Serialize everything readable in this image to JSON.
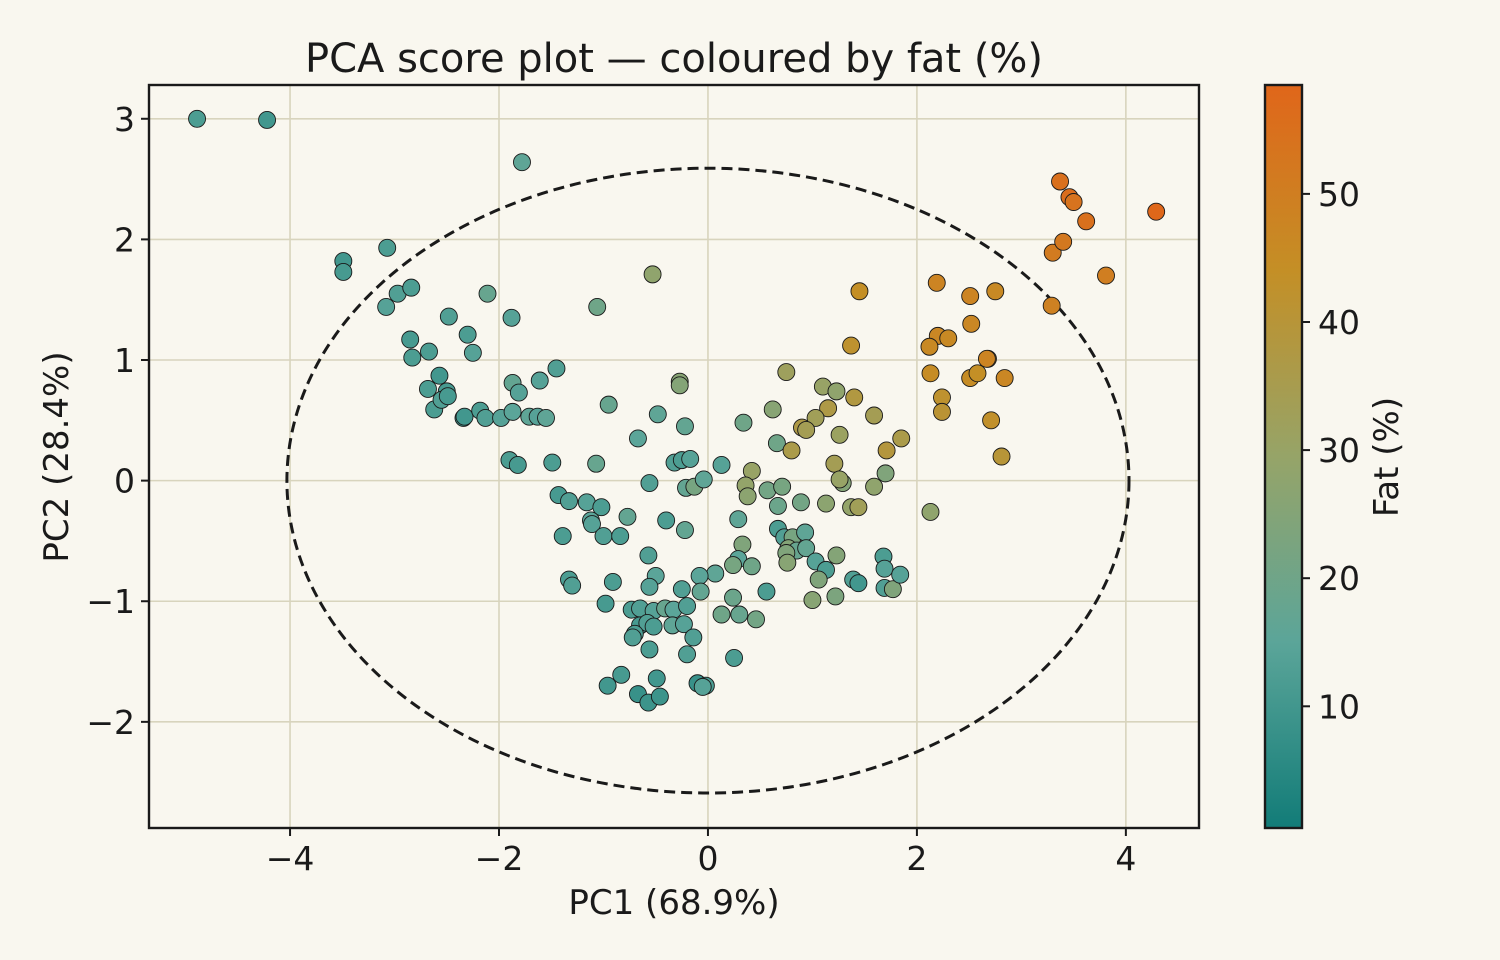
{
  "chart_data": {
    "type": "scatter",
    "title": "PCA score plot — coloured by fat (%)",
    "xlabel": "PC1  (68.9%)",
    "ylabel": "PC2  (28.4%)",
    "xlim": [
      -5.35,
      4.7
    ],
    "ylim": [
      -2.88,
      3.28
    ],
    "xticks": [
      -4,
      -2,
      0,
      2,
      4
    ],
    "yticks": [
      -2,
      -1,
      0,
      1,
      2,
      3
    ],
    "grid": true,
    "confidence_ellipse": {
      "center": [
        0,
        0
      ],
      "semi_axis_x": 4.03,
      "semi_axis_y": 2.59,
      "style": "dashed"
    },
    "colorbar": {
      "label": "Fat (%)",
      "range": [
        0.5,
        58.5
      ],
      "ticks": [
        10,
        20,
        30,
        40,
        50
      ],
      "colors": [
        "#127c78",
        "#5ba599",
        "#96a468",
        "#c48f26",
        "#e0661a"
      ]
    },
    "points": [
      {
        "x": -4.89,
        "y": 3.0,
        "fat": 12
      },
      {
        "x": -4.22,
        "y": 2.99,
        "fat": 10
      },
      {
        "x": -1.78,
        "y": 2.64,
        "fat": 16
      },
      {
        "x": -3.49,
        "y": 1.82,
        "fat": 10
      },
      {
        "x": -3.49,
        "y": 1.73,
        "fat": 11
      },
      {
        "x": -3.07,
        "y": 1.93,
        "fat": 12
      },
      {
        "x": -2.97,
        "y": 1.55,
        "fat": 13
      },
      {
        "x": -2.84,
        "y": 1.6,
        "fat": 12
      },
      {
        "x": -3.08,
        "y": 1.44,
        "fat": 14
      },
      {
        "x": -2.85,
        "y": 1.17,
        "fat": 11
      },
      {
        "x": -2.83,
        "y": 1.02,
        "fat": 12
      },
      {
        "x": -2.67,
        "y": 1.07,
        "fat": 12
      },
      {
        "x": -2.48,
        "y": 1.36,
        "fat": 13
      },
      {
        "x": -2.3,
        "y": 1.21,
        "fat": 12
      },
      {
        "x": -2.25,
        "y": 1.06,
        "fat": 14
      },
      {
        "x": -2.11,
        "y": 1.55,
        "fat": 18
      },
      {
        "x": -1.88,
        "y": 1.35,
        "fat": 14
      },
      {
        "x": -1.06,
        "y": 1.44,
        "fat": 20
      },
      {
        "x": -2.57,
        "y": 0.87,
        "fat": 10
      },
      {
        "x": -2.68,
        "y": 0.76,
        "fat": 12
      },
      {
        "x": -2.5,
        "y": 0.74,
        "fat": 11
      },
      {
        "x": -2.62,
        "y": 0.59,
        "fat": 12
      },
      {
        "x": -2.55,
        "y": 0.67,
        "fat": 13
      },
      {
        "x": -2.49,
        "y": 0.7,
        "fat": 11
      },
      {
        "x": -2.34,
        "y": 0.52,
        "fat": 9
      },
      {
        "x": -2.33,
        "y": 0.53,
        "fat": 10
      },
      {
        "x": -2.18,
        "y": 0.58,
        "fat": 12
      },
      {
        "x": -2.13,
        "y": 0.52,
        "fat": 13
      },
      {
        "x": -1.98,
        "y": 0.52,
        "fat": 14
      },
      {
        "x": -1.87,
        "y": 0.81,
        "fat": 17
      },
      {
        "x": -1.81,
        "y": 0.73,
        "fat": 14
      },
      {
        "x": -1.87,
        "y": 0.57,
        "fat": 15
      },
      {
        "x": -1.71,
        "y": 0.53,
        "fat": 16
      },
      {
        "x": -1.63,
        "y": 0.53,
        "fat": 14
      },
      {
        "x": -1.55,
        "y": 0.52,
        "fat": 16
      },
      {
        "x": -1.61,
        "y": 0.83,
        "fat": 14
      },
      {
        "x": -1.45,
        "y": 0.93,
        "fat": 13
      },
      {
        "x": -1.9,
        "y": 0.17,
        "fat": 12
      },
      {
        "x": -1.82,
        "y": 0.13,
        "fat": 11
      },
      {
        "x": -1.49,
        "y": 0.15,
        "fat": 12
      },
      {
        "x": -1.07,
        "y": 0.14,
        "fat": 18
      },
      {
        "x": -0.95,
        "y": 0.63,
        "fat": 18
      },
      {
        "x": -0.53,
        "y": 1.71,
        "fat": 28
      },
      {
        "x": -0.48,
        "y": 0.55,
        "fat": 16
      },
      {
        "x": -0.67,
        "y": 0.35,
        "fat": 15
      },
      {
        "x": -0.27,
        "y": 0.82,
        "fat": 26
      },
      {
        "x": -0.27,
        "y": 0.79,
        "fat": 25
      },
      {
        "x": -0.22,
        "y": 0.45,
        "fat": 17
      },
      {
        "x": -1.43,
        "y": -0.12,
        "fat": 11
      },
      {
        "x": -1.33,
        "y": -0.17,
        "fat": 13
      },
      {
        "x": -1.16,
        "y": -0.18,
        "fat": 14
      },
      {
        "x": -1.02,
        "y": -0.22,
        "fat": 12
      },
      {
        "x": -1.12,
        "y": -0.33,
        "fat": 15
      },
      {
        "x": -1.11,
        "y": -0.36,
        "fat": 14
      },
      {
        "x": -1.39,
        "y": -0.46,
        "fat": 12
      },
      {
        "x": -1.0,
        "y": -0.46,
        "fat": 13
      },
      {
        "x": -0.84,
        "y": -0.46,
        "fat": 12
      },
      {
        "x": -0.77,
        "y": -0.3,
        "fat": 17
      },
      {
        "x": -0.56,
        "y": -0.02,
        "fat": 13
      },
      {
        "x": -0.4,
        "y": -0.33,
        "fat": 12
      },
      {
        "x": -0.32,
        "y": 0.15,
        "fat": 13
      },
      {
        "x": -0.25,
        "y": 0.17,
        "fat": 12
      },
      {
        "x": -0.17,
        "y": 0.18,
        "fat": 14
      },
      {
        "x": -0.21,
        "y": -0.06,
        "fat": 17
      },
      {
        "x": -0.13,
        "y": -0.05,
        "fat": 22
      },
      {
        "x": -0.04,
        "y": 0.01,
        "fat": 16
      },
      {
        "x": 0.13,
        "y": 0.13,
        "fat": 14
      },
      {
        "x": -0.22,
        "y": -0.41,
        "fat": 17
      },
      {
        "x": 0.29,
        "y": -0.32,
        "fat": 16
      },
      {
        "x": 0.42,
        "y": 0.08,
        "fat": 30
      },
      {
        "x": 0.36,
        "y": -0.04,
        "fat": 29
      },
      {
        "x": 0.38,
        "y": -0.13,
        "fat": 27
      },
      {
        "x": 0.34,
        "y": 0.48,
        "fat": 20
      },
      {
        "x": 0.57,
        "y": -0.08,
        "fat": 21
      },
      {
        "x": 0.66,
        "y": 0.31,
        "fat": 20
      },
      {
        "x": 0.75,
        "y": 0.9,
        "fat": 32
      },
      {
        "x": 0.62,
        "y": 0.59,
        "fat": 26
      },
      {
        "x": 0.9,
        "y": 0.44,
        "fat": 37
      },
      {
        "x": 0.8,
        "y": 0.25,
        "fat": 36
      },
      {
        "x": 1.1,
        "y": 0.78,
        "fat": 30
      },
      {
        "x": 1.23,
        "y": 0.74,
        "fat": 28
      },
      {
        "x": 1.15,
        "y": 0.6,
        "fat": 37
      },
      {
        "x": 1.03,
        "y": 0.52,
        "fat": 33
      },
      {
        "x": 0.94,
        "y": 0.42,
        "fat": 34
      },
      {
        "x": 1.26,
        "y": 0.38,
        "fat": 31
      },
      {
        "x": 1.4,
        "y": 0.69,
        "fat": 38
      },
      {
        "x": 1.59,
        "y": 0.54,
        "fat": 34
      },
      {
        "x": 1.37,
        "y": 1.12,
        "fat": 42
      },
      {
        "x": 1.45,
        "y": 1.57,
        "fat": 44
      },
      {
        "x": 1.71,
        "y": 0.25,
        "fat": 39
      },
      {
        "x": 1.85,
        "y": 0.35,
        "fat": 36
      },
      {
        "x": 1.7,
        "y": 0.06,
        "fat": 24
      },
      {
        "x": 1.59,
        "y": -0.05,
        "fat": 28
      },
      {
        "x": 1.21,
        "y": 0.14,
        "fat": 34
      },
      {
        "x": 1.29,
        "y": -0.02,
        "fat": 25
      },
      {
        "x": 1.26,
        "y": 0.01,
        "fat": 30
      },
      {
        "x": 1.13,
        "y": -0.19,
        "fat": 27
      },
      {
        "x": 1.37,
        "y": -0.22,
        "fat": 29
      },
      {
        "x": 1.44,
        "y": -0.22,
        "fat": 33
      },
      {
        "x": 0.89,
        "y": -0.18,
        "fat": 21
      },
      {
        "x": 0.71,
        "y": -0.05,
        "fat": 22
      },
      {
        "x": 0.67,
        "y": -0.21,
        "fat": 19
      },
      {
        "x": 0.33,
        "y": -0.53,
        "fat": 24
      },
      {
        "x": 0.67,
        "y": -0.4,
        "fat": 12
      },
      {
        "x": 0.73,
        "y": -0.47,
        "fat": 13
      },
      {
        "x": 0.81,
        "y": -0.47,
        "fat": 22
      },
      {
        "x": 0.93,
        "y": -0.43,
        "fat": 16
      },
      {
        "x": 0.77,
        "y": -0.56,
        "fat": 25
      },
      {
        "x": 0.85,
        "y": -0.58,
        "fat": 18
      },
      {
        "x": 0.75,
        "y": -0.6,
        "fat": 24
      },
      {
        "x": 0.76,
        "y": -0.68,
        "fat": 26
      },
      {
        "x": 0.94,
        "y": -0.56,
        "fat": 17
      },
      {
        "x": 1.03,
        "y": -0.67,
        "fat": 14
      },
      {
        "x": 1.13,
        "y": -0.74,
        "fat": 12
      },
      {
        "x": 1.06,
        "y": -0.82,
        "fat": 24
      },
      {
        "x": 1.23,
        "y": -0.62,
        "fat": 25
      },
      {
        "x": 1.39,
        "y": -0.82,
        "fat": 13
      },
      {
        "x": 1.44,
        "y": -0.85,
        "fat": 10
      },
      {
        "x": 1.22,
        "y": -0.96,
        "fat": 23
      },
      {
        "x": 1.0,
        "y": -0.99,
        "fat": 26
      },
      {
        "x": 0.56,
        "y": -0.92,
        "fat": 12
      },
      {
        "x": 0.29,
        "y": -0.65,
        "fat": 15
      },
      {
        "x": 0.42,
        "y": -0.71,
        "fat": 20
      },
      {
        "x": 0.24,
        "y": -0.7,
        "fat": 22
      },
      {
        "x": 0.07,
        "y": -0.77,
        "fat": 16
      },
      {
        "x": -0.08,
        "y": -0.79,
        "fat": 15
      },
      {
        "x": -0.25,
        "y": -0.9,
        "fat": 13
      },
      {
        "x": -0.07,
        "y": -0.92,
        "fat": 17
      },
      {
        "x": 0.24,
        "y": -0.97,
        "fat": 19
      },
      {
        "x": 0.3,
        "y": -1.11,
        "fat": 18
      },
      {
        "x": 0.13,
        "y": -1.11,
        "fat": 20
      },
      {
        "x": 0.46,
        "y": -1.15,
        "fat": 21
      },
      {
        "x": -0.57,
        "y": -0.62,
        "fat": 13
      },
      {
        "x": -0.5,
        "y": -0.79,
        "fat": 15
      },
      {
        "x": -0.56,
        "y": -0.88,
        "fat": 14
      },
      {
        "x": -0.91,
        "y": -0.84,
        "fat": 12
      },
      {
        "x": -0.98,
        "y": -1.02,
        "fat": 11
      },
      {
        "x": -1.33,
        "y": -0.82,
        "fat": 12
      },
      {
        "x": -1.3,
        "y": -0.87,
        "fat": 13
      },
      {
        "x": -0.73,
        "y": -1.07,
        "fat": 12
      },
      {
        "x": -0.65,
        "y": -1.06,
        "fat": 13
      },
      {
        "x": -0.52,
        "y": -1.08,
        "fat": 14
      },
      {
        "x": -0.41,
        "y": -1.06,
        "fat": 18
      },
      {
        "x": -0.33,
        "y": -1.07,
        "fat": 15
      },
      {
        "x": -0.2,
        "y": -1.04,
        "fat": 13
      },
      {
        "x": -0.34,
        "y": -1.2,
        "fat": 16
      },
      {
        "x": -0.23,
        "y": -1.19,
        "fat": 14
      },
      {
        "x": -0.65,
        "y": -1.2,
        "fat": 11
      },
      {
        "x": -0.58,
        "y": -1.18,
        "fat": 13
      },
      {
        "x": -0.7,
        "y": -1.27,
        "fat": 12
      },
      {
        "x": -0.72,
        "y": -1.3,
        "fat": 13
      },
      {
        "x": -0.52,
        "y": -1.21,
        "fat": 12
      },
      {
        "x": -0.14,
        "y": -1.3,
        "fat": 13
      },
      {
        "x": -0.56,
        "y": -1.4,
        "fat": 12
      },
      {
        "x": -0.2,
        "y": -1.44,
        "fat": 13
      },
      {
        "x": 0.25,
        "y": -1.47,
        "fat": 12
      },
      {
        "x": -0.83,
        "y": -1.61,
        "fat": 11
      },
      {
        "x": -0.49,
        "y": -1.64,
        "fat": 10
      },
      {
        "x": -0.96,
        "y": -1.7,
        "fat": 10
      },
      {
        "x": -0.67,
        "y": -1.77,
        "fat": 8
      },
      {
        "x": -0.57,
        "y": -1.84,
        "fat": 9
      },
      {
        "x": -0.46,
        "y": -1.79,
        "fat": 9
      },
      {
        "x": -0.1,
        "y": -1.68,
        "fat": 8
      },
      {
        "x": -0.02,
        "y": -1.7,
        "fat": 12
      },
      {
        "x": -0.05,
        "y": -1.71,
        "fat": 14
      },
      {
        "x": 1.68,
        "y": -0.63,
        "fat": 12
      },
      {
        "x": 1.69,
        "y": -0.73,
        "fat": 14
      },
      {
        "x": 1.69,
        "y": -0.89,
        "fat": 13
      },
      {
        "x": 1.77,
        "y": -0.9,
        "fat": 24
      },
      {
        "x": 1.84,
        "y": -0.78,
        "fat": 14
      },
      {
        "x": 2.13,
        "y": -0.26,
        "fat": 28
      },
      {
        "x": 2.19,
        "y": 1.64,
        "fat": 48
      },
      {
        "x": 2.2,
        "y": 1.2,
        "fat": 47
      },
      {
        "x": 2.12,
        "y": 1.11,
        "fat": 46
      },
      {
        "x": 2.3,
        "y": 1.18,
        "fat": 46
      },
      {
        "x": 2.13,
        "y": 0.89,
        "fat": 45
      },
      {
        "x": 2.24,
        "y": 0.69,
        "fat": 42
      },
      {
        "x": 2.24,
        "y": 0.57,
        "fat": 41
      },
      {
        "x": 2.51,
        "y": 1.53,
        "fat": 48
      },
      {
        "x": 2.52,
        "y": 1.3,
        "fat": 47
      },
      {
        "x": 2.75,
        "y": 1.57,
        "fat": 46
      },
      {
        "x": 2.68,
        "y": 1.01,
        "fat": 47
      },
      {
        "x": 2.67,
        "y": 1.01,
        "fat": 48
      },
      {
        "x": 2.51,
        "y": 0.85,
        "fat": 45
      },
      {
        "x": 2.58,
        "y": 0.89,
        "fat": 44
      },
      {
        "x": 2.84,
        "y": 0.85,
        "fat": 47
      },
      {
        "x": 2.71,
        "y": 0.5,
        "fat": 43
      },
      {
        "x": 2.81,
        "y": 0.2,
        "fat": 40
      },
      {
        "x": 3.29,
        "y": 1.45,
        "fat": 49
      },
      {
        "x": 3.3,
        "y": 1.89,
        "fat": 51
      },
      {
        "x": 3.4,
        "y": 1.98,
        "fat": 52
      },
      {
        "x": 3.81,
        "y": 1.7,
        "fat": 50
      },
      {
        "x": 3.37,
        "y": 2.48,
        "fat": 55
      },
      {
        "x": 3.46,
        "y": 2.35,
        "fat": 56
      },
      {
        "x": 3.5,
        "y": 2.31,
        "fat": 54
      },
      {
        "x": 3.62,
        "y": 2.15,
        "fat": 55
      },
      {
        "x": 4.29,
        "y": 2.23,
        "fat": 58
      }
    ]
  }
}
